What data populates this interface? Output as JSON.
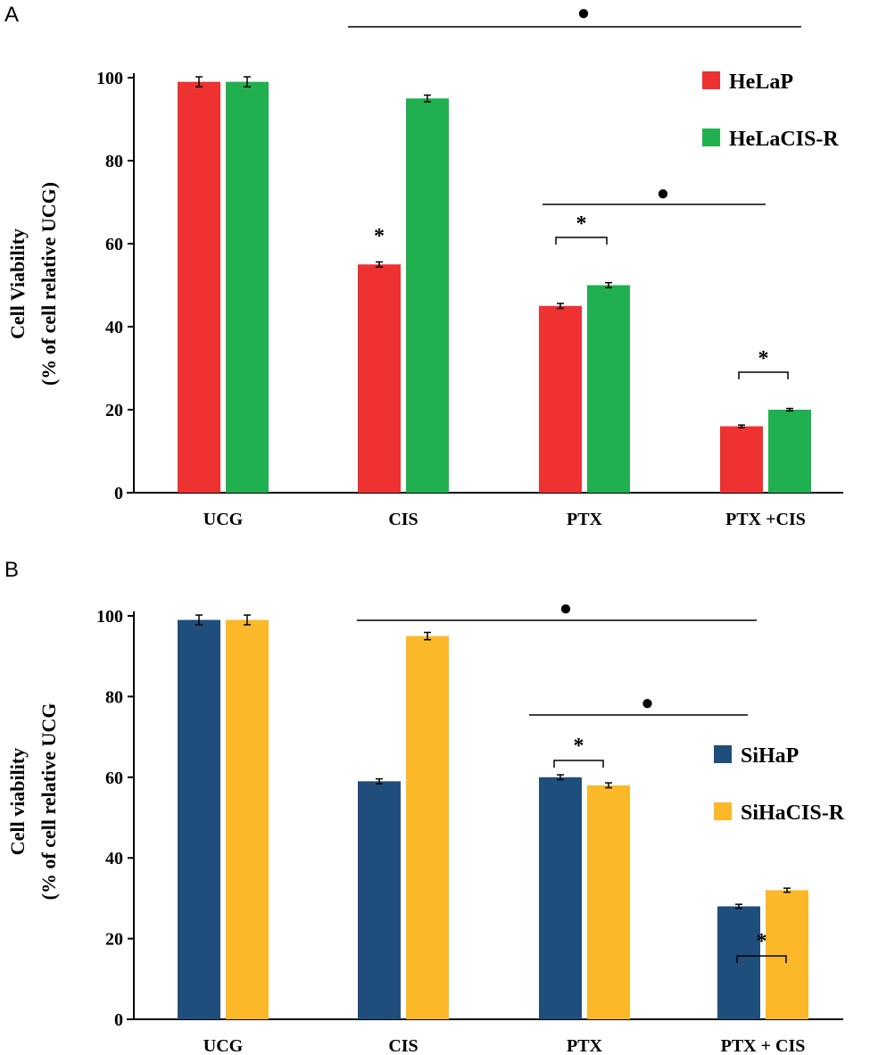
{
  "chart_data": [
    {
      "panel": "A",
      "type": "bar",
      "categories": [
        "UCG",
        "CIS",
        "PTX",
        "PTX +CIS"
      ],
      "series": [
        {
          "name": "HeLaP",
          "color": "#ee3131",
          "values": [
            99,
            55,
            45,
            16
          ],
          "errors": [
            1.2,
            0.6,
            0.6,
            0.3
          ]
        },
        {
          "name": "HeLaCIS-R",
          "color": "#21b04f",
          "values": [
            99,
            95,
            50,
            20
          ],
          "errors": [
            1.2,
            0.8,
            0.6,
            0.3
          ]
        }
      ],
      "ylabel_line1": "Cell Viability",
      "ylabel_line2": "(% of cell relative UCG)",
      "ylim": [
        0,
        100
      ],
      "yticks": [
        "0",
        "20",
        "40",
        "60",
        "80",
        "100"
      ],
      "legend_position": "top-right",
      "annotations": [
        {
          "kind": "sig-line",
          "from_category": 1,
          "to_category": 3,
          "symbol": "●"
        },
        {
          "kind": "sig-line",
          "from_category": 2,
          "to_category": 3,
          "symbol": "●"
        },
        {
          "kind": "star",
          "category": 1,
          "series": 0,
          "symbol": "*"
        },
        {
          "kind": "bracket",
          "category": 2,
          "symbol": "*"
        },
        {
          "kind": "bracket",
          "category": 3,
          "symbol": "*"
        }
      ]
    },
    {
      "panel": "B",
      "type": "bar",
      "categories": [
        "UCG",
        "CIS",
        "PTX",
        "PTX + CIS"
      ],
      "series": [
        {
          "name": "SiHaP",
          "color": "#1f4e7d",
          "values": [
            99,
            59,
            60,
            28
          ],
          "errors": [
            1.2,
            0.6,
            0.6,
            0.5
          ]
        },
        {
          "name": "SiHaCIS-R",
          "color": "#fbb829",
          "values": [
            99,
            95,
            58,
            32
          ],
          "errors": [
            1.2,
            0.9,
            0.6,
            0.5
          ]
        }
      ],
      "ylabel_line1": "Cell viability",
      "ylabel_line2": "(% of cell relative UCG",
      "ylim": [
        0,
        100
      ],
      "yticks": [
        "0",
        "20",
        "40",
        "60",
        "80",
        "100"
      ],
      "legend_position": "right",
      "annotations": [
        {
          "kind": "sig-line",
          "from_category": 1,
          "to_category": 3,
          "symbol": "●"
        },
        {
          "kind": "sig-line",
          "from_category": 2,
          "to_category": 3,
          "symbol": "●"
        },
        {
          "kind": "bracket",
          "category": 2,
          "symbol": "*"
        },
        {
          "kind": "bracket",
          "category": 3,
          "symbol": "*"
        }
      ]
    }
  ]
}
